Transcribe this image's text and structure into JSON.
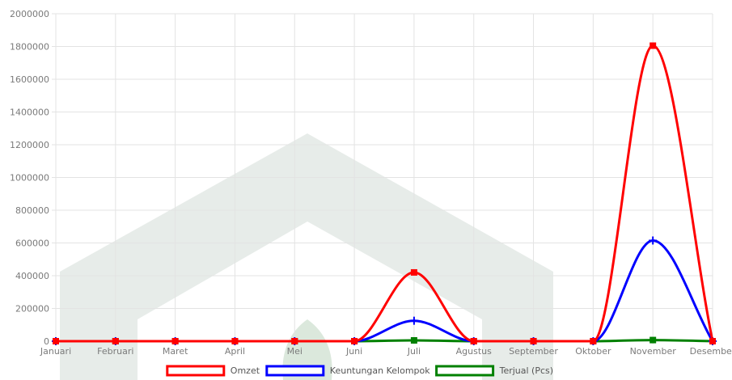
{
  "chart_data": {
    "type": "line",
    "categories": [
      "Januari",
      "Februari",
      "Maret",
      "April",
      "Mei",
      "Juni",
      "Juli",
      "Agustus",
      "September",
      "Oktober",
      "November",
      "Desember"
    ],
    "series": [
      {
        "name": "Omzet",
        "color": "#ff0000",
        "point_style": "square",
        "values": [
          0,
          0,
          0,
          0,
          0,
          0,
          420000,
          0,
          0,
          0,
          1805000,
          0
        ]
      },
      {
        "name": "Keuntungan Kelompok",
        "color": "#0000ff",
        "point_style": "cross",
        "values": [
          0,
          0,
          0,
          0,
          0,
          0,
          125000,
          0,
          0,
          0,
          615000,
          0
        ]
      },
      {
        "name": "Terjual (Pcs)",
        "color": "#008000",
        "point_style": "square",
        "values": [
          0,
          0,
          0,
          0,
          0,
          0,
          5000,
          0,
          0,
          0,
          7000,
          0
        ]
      }
    ],
    "y_ticks": [
      "0",
      "200000",
      "400000",
      "600000",
      "800000",
      "1000000",
      "1200000",
      "1400000",
      "1600000",
      "1800000",
      "2000000"
    ],
    "ylim": [
      0,
      2000000
    ],
    "grid": true,
    "legend_position": "bottom",
    "watermark": "faint grey building logo behind the plot"
  }
}
